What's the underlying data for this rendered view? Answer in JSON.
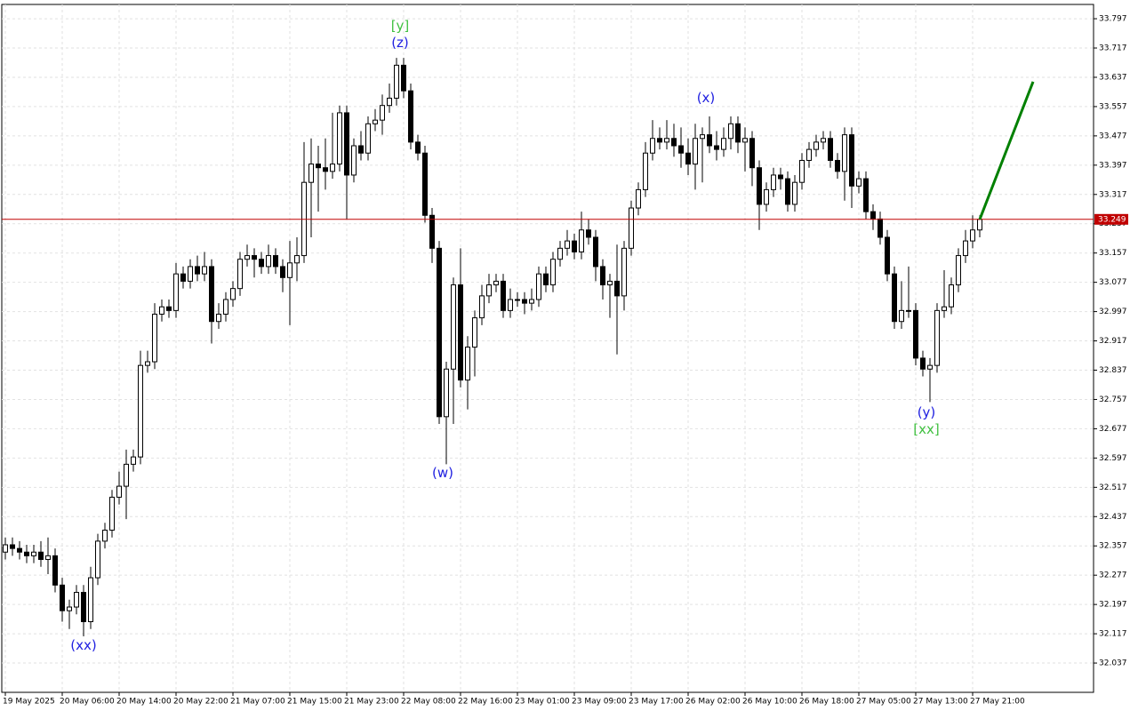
{
  "chart_data": {
    "type": "candlestick",
    "categories": [
      "19 May 2025",
      null,
      null,
      null,
      null,
      null,
      null,
      null,
      "20 May 06:00",
      null,
      null,
      null,
      null,
      null,
      null,
      null,
      "20 May 14:00",
      null,
      null,
      null,
      null,
      null,
      null,
      null,
      "20 May 22:00",
      null,
      null,
      null,
      null,
      null,
      null,
      null,
      "21 May 07:00",
      null,
      null,
      null,
      null,
      null,
      null,
      null,
      "21 May 15:00",
      null,
      null,
      null,
      null,
      null,
      null,
      null,
      "21 May 23:00",
      null,
      null,
      null,
      null,
      null,
      null,
      null,
      "22 May 08:00",
      null,
      null,
      null,
      null,
      null,
      null,
      null,
      "22 May 16:00",
      null,
      null,
      null,
      null,
      null,
      null,
      null,
      "23 May 01:00",
      null,
      null,
      null,
      null,
      null,
      null,
      null,
      "23 May 09:00",
      null,
      null,
      null,
      null,
      null,
      null,
      null,
      "23 May 17:00",
      null,
      null,
      null,
      null,
      null,
      null,
      null,
      "26 May 02:00",
      null,
      null,
      null,
      null,
      null,
      null,
      null,
      "26 May 10:00",
      null,
      null,
      null,
      null,
      null,
      null,
      null,
      "26 May 18:00",
      null,
      null,
      null,
      null,
      null,
      null,
      null,
      "27 May 05:00",
      null,
      null,
      null,
      null,
      null,
      null,
      null,
      "27 May 13:00",
      null,
      null,
      null,
      null,
      null,
      null,
      null,
      "27 May 21:00",
      null
    ],
    "open": [
      32.34,
      32.36,
      32.35,
      32.34,
      32.33,
      32.34,
      32.32,
      32.33,
      32.25,
      32.18,
      32.19,
      32.23,
      32.15,
      32.27,
      32.37,
      32.4,
      32.49,
      32.52,
      32.58,
      32.6,
      32.85,
      32.86,
      32.99,
      33.01,
      33.0,
      33.1,
      33.08,
      33.12,
      33.1,
      33.12,
      32.97,
      32.99,
      33.03,
      33.06,
      33.14,
      33.15,
      33.14,
      33.12,
      33.15,
      33.12,
      33.09,
      33.13,
      33.15,
      33.35,
      33.4,
      33.39,
      33.38,
      33.4,
      33.54,
      33.37,
      33.45,
      33.43,
      33.51,
      33.52,
      33.56,
      33.58,
      33.67,
      33.6,
      33.46,
      33.43,
      33.26,
      33.17,
      32.71,
      32.84,
      33.07,
      32.81,
      32.9,
      32.98,
      33.04,
      33.07,
      33.08,
      33.0,
      33.03,
      33.03,
      33.02,
      33.03,
      33.1,
      33.07,
      33.14,
      33.17,
      33.19,
      33.16,
      33.22,
      33.2,
      33.12,
      33.07,
      33.08,
      33.04,
      33.17,
      33.28,
      33.33,
      33.43,
      33.47,
      33.46,
      33.47,
      33.45,
      33.43,
      33.4,
      33.47,
      33.48,
      33.45,
      33.44,
      33.47,
      33.51,
      33.46,
      33.47,
      33.39,
      33.29,
      33.33,
      33.37,
      33.36,
      33.29,
      33.35,
      33.41,
      33.44,
      33.46,
      33.47,
      33.41,
      33.38,
      33.48,
      33.34,
      33.36,
      33.27,
      33.25,
      33.2,
      33.1,
      32.97,
      33.0,
      33.0,
      32.87,
      32.84,
      32.85,
      33.0,
      33.01,
      33.07,
      33.15,
      33.19,
      33.22
    ],
    "high": [
      32.38,
      32.38,
      32.37,
      32.36,
      32.36,
      32.37,
      32.38,
      32.35,
      32.27,
      32.21,
      32.25,
      32.25,
      32.3,
      32.39,
      32.42,
      32.51,
      32.56,
      32.62,
      32.62,
      32.89,
      32.89,
      33.02,
      33.03,
      33.03,
      33.13,
      33.12,
      33.14,
      33.15,
      33.16,
      33.14,
      33.02,
      33.05,
      33.08,
      33.16,
      33.18,
      33.17,
      33.16,
      33.18,
      33.17,
      33.14,
      33.19,
      33.2,
      33.46,
      33.47,
      33.45,
      33.47,
      33.54,
      33.56,
      33.56,
      33.47,
      33.49,
      33.53,
      33.55,
      33.59,
      33.62,
      33.69,
      33.69,
      33.62,
      33.48,
      33.45,
      33.28,
      33.19,
      32.86,
      33.09,
      33.17,
      32.93,
      33.0,
      33.07,
      33.1,
      33.1,
      33.1,
      33.06,
      33.05,
      33.05,
      33.06,
      33.12,
      33.12,
      33.16,
      33.19,
      33.22,
      33.21,
      33.27,
      33.25,
      33.22,
      33.14,
      33.1,
      33.18,
      33.19,
      33.3,
      33.35,
      33.46,
      33.52,
      33.5,
      33.52,
      33.51,
      33.5,
      33.47,
      33.51,
      33.5,
      33.53,
      33.49,
      33.5,
      33.53,
      33.53,
      33.5,
      33.49,
      33.41,
      33.35,
      33.39,
      33.39,
      33.38,
      33.37,
      33.43,
      33.46,
      33.48,
      33.49,
      33.49,
      33.43,
      33.5,
      33.5,
      33.38,
      33.38,
      33.29,
      33.27,
      33.22,
      33.12,
      33.08,
      33.12,
      33.02,
      32.89,
      32.87,
      33.02,
      33.11,
      33.09,
      33.17,
      33.22,
      33.26,
      33.26
    ],
    "low": [
      32.32,
      32.33,
      32.32,
      32.31,
      32.31,
      32.3,
      32.28,
      32.23,
      32.15,
      32.13,
      32.17,
      32.11,
      32.13,
      32.25,
      32.35,
      32.38,
      32.47,
      32.43,
      32.56,
      32.58,
      32.83,
      32.84,
      32.97,
      32.98,
      32.98,
      33.06,
      33.06,
      33.08,
      33.08,
      32.91,
      32.95,
      32.97,
      33.01,
      33.04,
      33.12,
      33.09,
      33.1,
      33.1,
      33.1,
      33.05,
      32.96,
      33.08,
      33.13,
      33.2,
      33.27,
      33.33,
      33.36,
      33.38,
      33.25,
      33.35,
      33.41,
      33.41,
      33.49,
      33.48,
      33.54,
      33.56,
      33.58,
      33.44,
      33.41,
      33.24,
      33.13,
      32.69,
      32.58,
      32.69,
      32.79,
      32.73,
      32.82,
      32.96,
      33.02,
      33.05,
      32.98,
      32.98,
      33.01,
      32.99,
      33.0,
      33.01,
      33.05,
      33.05,
      33.12,
      33.15,
      33.14,
      33.14,
      33.18,
      33.08,
      33.03,
      32.98,
      32.88,
      33.0,
      33.15,
      33.26,
      33.31,
      33.41,
      33.44,
      33.44,
      33.42,
      33.39,
      33.37,
      33.33,
      33.35,
      33.43,
      33.41,
      33.42,
      33.44,
      33.43,
      33.38,
      33.34,
      33.22,
      33.27,
      33.31,
      33.33,
      33.27,
      33.27,
      33.33,
      33.39,
      33.42,
      33.44,
      33.39,
      33.36,
      33.3,
      33.28,
      33.32,
      33.25,
      33.22,
      33.18,
      33.08,
      32.95,
      32.95,
      32.98,
      32.85,
      32.82,
      32.75,
      32.83,
      32.98,
      32.99,
      33.05,
      33.13,
      33.17,
      33.2
    ],
    "close": [
      32.36,
      32.35,
      32.34,
      32.33,
      32.34,
      32.32,
      32.33,
      32.25,
      32.18,
      32.19,
      32.23,
      32.15,
      32.27,
      32.37,
      32.4,
      32.49,
      32.52,
      32.58,
      32.6,
      32.85,
      32.86,
      32.99,
      33.01,
      33.0,
      33.1,
      33.08,
      33.12,
      33.1,
      33.12,
      32.97,
      32.99,
      33.03,
      33.06,
      33.14,
      33.15,
      33.14,
      33.12,
      33.15,
      33.12,
      33.09,
      33.13,
      33.15,
      33.35,
      33.4,
      33.39,
      33.38,
      33.4,
      33.54,
      33.37,
      33.45,
      33.43,
      33.51,
      33.52,
      33.56,
      33.58,
      33.67,
      33.6,
      33.46,
      33.43,
      33.26,
      33.17,
      32.71,
      32.84,
      33.07,
      32.81,
      32.9,
      32.98,
      33.04,
      33.07,
      33.08,
      33.0,
      33.03,
      33.03,
      33.02,
      33.03,
      33.1,
      33.07,
      33.14,
      33.17,
      33.19,
      33.16,
      33.22,
      33.2,
      33.12,
      33.07,
      33.08,
      33.04,
      33.17,
      33.28,
      33.33,
      33.43,
      33.47,
      33.46,
      33.47,
      33.45,
      33.43,
      33.4,
      33.47,
      33.48,
      33.45,
      33.44,
      33.47,
      33.51,
      33.46,
      33.47,
      33.39,
      33.29,
      33.33,
      33.37,
      33.36,
      33.29,
      33.35,
      33.41,
      33.44,
      33.46,
      33.47,
      33.41,
      33.38,
      33.48,
      33.34,
      33.36,
      33.27,
      33.25,
      33.2,
      33.1,
      32.97,
      33.0,
      33.0,
      32.87,
      32.84,
      32.85,
      33.0,
      33.01,
      33.07,
      33.15,
      33.19,
      33.22,
      33.249
    ],
    "ylim": [
      31.957,
      33.836
    ],
    "yticks": [
      32.037,
      32.117,
      32.197,
      32.277,
      32.357,
      32.437,
      32.517,
      32.597,
      32.677,
      32.757,
      32.837,
      32.917,
      32.997,
      33.077,
      33.157,
      33.237,
      33.317,
      33.397,
      33.477,
      33.557,
      33.637,
      33.717,
      33.797
    ],
    "grid": true,
    "current_price": 33.249,
    "current_price_color": "#c00000",
    "projection": {
      "color": "#008000",
      "x": [
        137,
        144.5
      ],
      "values": [
        33.249,
        33.625
      ]
    },
    "annotations": [
      {
        "text": "(xx)",
        "color": "#2020e0",
        "index": 11,
        "price": 32.085
      },
      {
        "text": "[y]",
        "color": "#40c040",
        "index": 55.5,
        "price": 33.777
      },
      {
        "text": "(z)",
        "color": "#2020e0",
        "index": 55.5,
        "price": 33.731
      },
      {
        "text": "(w)",
        "color": "#2020e0",
        "index": 61.5,
        "price": 32.555
      },
      {
        "text": "(x)",
        "color": "#2020e0",
        "index": 98.5,
        "price": 33.58
      },
      {
        "text": "(y)",
        "color": "#2020e0",
        "index": 129.5,
        "price": 32.72
      },
      {
        "text": "[xx]",
        "color": "#40c040",
        "index": 129.5,
        "price": 32.674
      }
    ]
  }
}
